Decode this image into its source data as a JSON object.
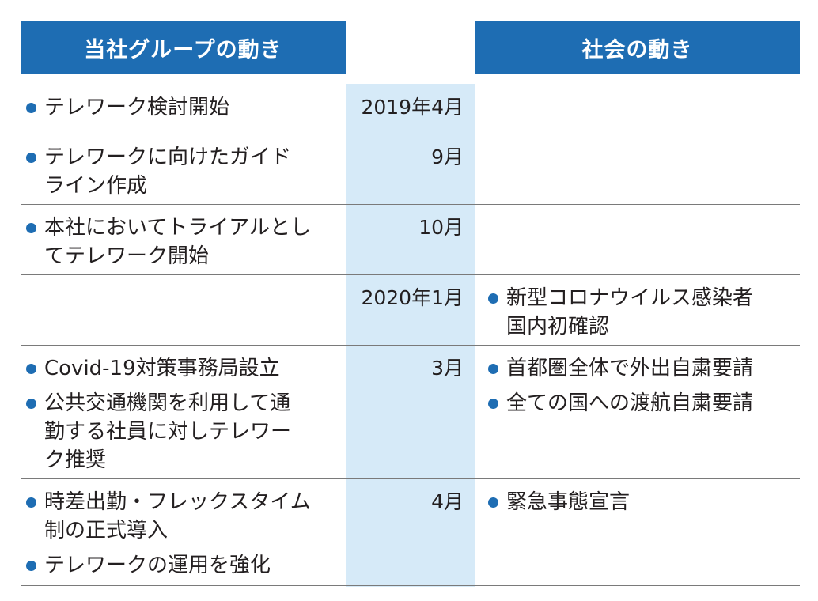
{
  "headers": {
    "company": "当社グループの動き",
    "society": "社会の動き"
  },
  "rows": [
    {
      "date": "2019年4月",
      "company": [
        "テレワーク検討開始"
      ],
      "society": []
    },
    {
      "date": "9月",
      "company": [
        "テレワークに向けたガイドライン作成"
      ],
      "society": []
    },
    {
      "date": "10月",
      "company": [
        "本社においてトライアルとしてテレワーク開始"
      ],
      "society": []
    },
    {
      "date": "2020年1月",
      "company": [],
      "society": [
        "新型コロナウイルス感染者国内初確認"
      ]
    },
    {
      "date": "3月",
      "company": [
        "Covid-19対策事務局設立",
        "公共交通機関を利用して通勤する社員に対しテレワーク推奨"
      ],
      "society": [
        "首都圏全体で外出自粛要請",
        "全ての国への渡航自粛要請"
      ]
    },
    {
      "date": "4月",
      "company": [
        "時差出勤・フレックスタイム制の正式導入",
        "テレワークの運用を強化"
      ],
      "society": [
        "緊急事態宣言"
      ]
    }
  ],
  "colors": {
    "header_bg": "#1e6db3",
    "header_text": "#ffffff",
    "date_col_bg": "#d6eaf8",
    "bullet": "#1e6db3",
    "rule": "#7a7a7a"
  }
}
